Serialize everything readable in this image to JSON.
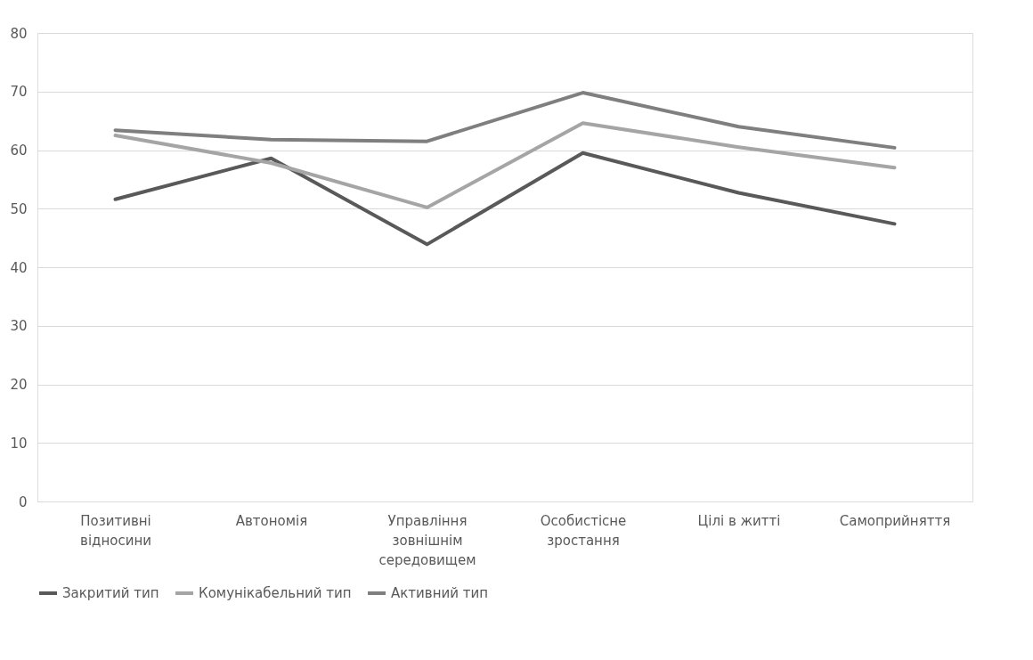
{
  "chart_data": {
    "type": "line",
    "categories": [
      "Позитивні відносини",
      "Автономія",
      "Управління зовнішнім середовищем",
      "Особистісне зростання",
      "Цілі в житті",
      "Самоприйняття"
    ],
    "series": [
      {
        "name": "Закритий тип",
        "color": "#595959",
        "values": [
          51.6,
          58.6,
          43.9,
          59.5,
          52.7,
          47.4
        ]
      },
      {
        "name": "Комунікабельний тип",
        "color": "#a5a5a5",
        "values": [
          62.5,
          57.8,
          50.2,
          64.6,
          60.5,
          57.0
        ]
      },
      {
        "name": "Активний тип",
        "color": "#7f7f7f",
        "values": [
          63.4,
          61.8,
          61.5,
          69.8,
          64.0,
          60.4
        ]
      }
    ],
    "ylim": [
      0,
      80
    ],
    "yticks": [
      0,
      10,
      20,
      30,
      40,
      50,
      60,
      70,
      80
    ],
    "grid": "y",
    "legend": "bottom",
    "marker": "none",
    "line_style": "solid"
  }
}
